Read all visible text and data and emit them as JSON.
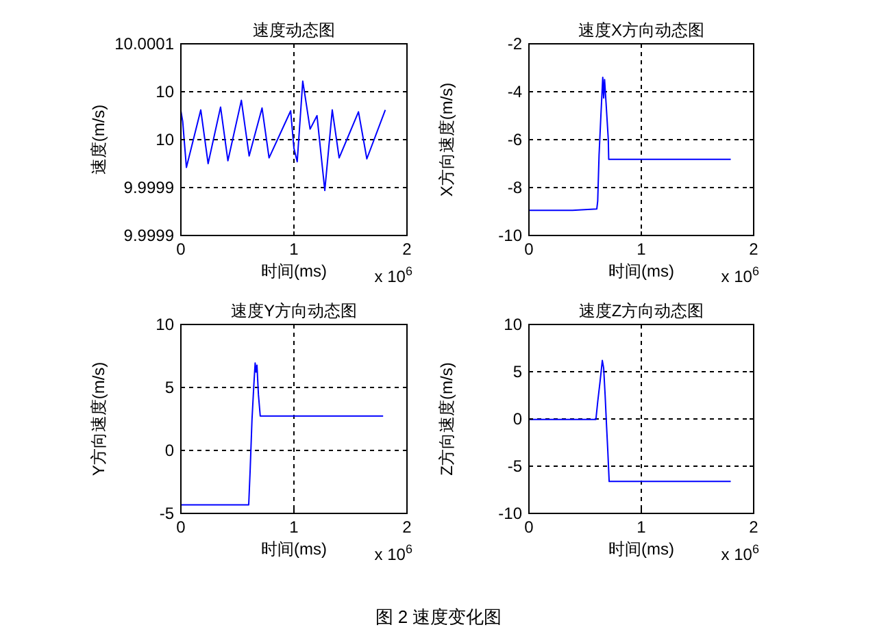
{
  "chart_data": [
    {
      "type": "line",
      "title": "速度动态图",
      "xlabel": "时间(ms)",
      "ylabel": "速度(m/s)",
      "annotations": [
        "x 10$^{6}$"
      ],
      "grid": true,
      "xlim": [
        0,
        2
      ],
      "xticks": [
        0,
        1,
        2
      ],
      "ylim": [
        9.99985,
        10.00005
      ],
      "yticks": [
        {
          "value": 9.99985,
          "label": "9.9999"
        },
        {
          "value": 9.9999,
          "label": "9.9999"
        },
        {
          "value": 9.99995,
          "label": "10"
        },
        {
          "value": 10.0,
          "label": "10"
        },
        {
          "value": 10.00005,
          "label": "10.0001"
        }
      ],
      "series": [
        {
          "color": "#0000ff",
          "x": [
            0,
            0.016,
            0.049,
            0.176,
            0.241,
            0.351,
            0.416,
            0.535,
            0.604,
            0.718,
            0.78,
            0.971,
            1.0,
            1.029,
            1.078,
            1.098,
            1.143,
            1.204,
            1.273,
            1.339,
            1.4,
            1.571,
            1.645,
            1.808
          ],
          "values": [
            9.99998,
            9.999969,
            9.999921,
            9.999981,
            9.999925,
            9.999984,
            9.999928,
            9.999991,
            9.999933,
            9.999983,
            9.999931,
            9.99998,
            9.999941,
            9.999927,
            10.000011,
            9.999996,
            9.999961,
            9.999975,
            9.999897,
            9.999981,
            9.999931,
            9.999979,
            9.99993,
            9.999981
          ]
        }
      ]
    },
    {
      "type": "line",
      "title": "速度X方向动态图",
      "xlabel": "时间(ms)",
      "ylabel": "X方向速度(m/s)",
      "annotations": [
        "x 10$^{6}$"
      ],
      "grid": true,
      "xlim": [
        0,
        2
      ],
      "xticks": [
        0,
        1,
        2
      ],
      "ylim": [
        -10,
        -2
      ],
      "yticks": [
        -10,
        -8,
        -6,
        -4,
        -2
      ],
      "series": [
        {
          "color": "#0000ff",
          "x": [
            0,
            0.388,
            0.604,
            0.612,
            0.624,
            0.641,
            0.657,
            0.665,
            0.673,
            0.686,
            0.706,
            0.71,
            1.796
          ],
          "values": [
            -8.95,
            -8.95,
            -8.89,
            -8.56,
            -6.65,
            -4.93,
            -3.4,
            -4.26,
            -3.49,
            -4.45,
            -5.98,
            -6.82,
            -6.82
          ]
        }
      ]
    },
    {
      "type": "line",
      "title": "速度Y方向动态图",
      "xlabel": "时间(ms)",
      "ylabel": "Y方向速度(m/s)",
      "annotations": [
        "x 10$^{6}$"
      ],
      "grid": true,
      "xlim": [
        0,
        2
      ],
      "xticks": [
        0,
        1,
        2
      ],
      "ylim": [
        -5,
        10
      ],
      "yticks": [
        -5,
        0,
        5,
        10
      ],
      "series": [
        {
          "color": "#0000ff",
          "x": [
            0,
            0.6,
            0.613,
            0.629,
            0.645,
            0.657,
            0.665,
            0.673,
            0.686,
            0.702,
            1.789
          ],
          "values": [
            -4.32,
            -4.32,
            -1.51,
            2.45,
            5.14,
            6.94,
            6.22,
            6.76,
            4.42,
            2.73,
            2.73
          ]
        }
      ]
    },
    {
      "type": "line",
      "title": "速度Z方向动态图",
      "xlabel": "时间(ms)",
      "ylabel": "Z方向速度(m/s)",
      "annotations": [
        "x 10$^{6}$",
        "图 2 速度变化图"
      ],
      "grid": true,
      "xlim": [
        0,
        2
      ],
      "xticks": [
        0,
        1,
        2
      ],
      "ylim": [
        -10,
        10
      ],
      "yticks": [
        -10,
        -5,
        0,
        5,
        10
      ],
      "series": [
        {
          "color": "#0000ff",
          "x": [
            0,
            0.596,
            0.612,
            0.633,
            0.653,
            0.665,
            0.678,
            0.69,
            0.702,
            0.714,
            1.796
          ],
          "values": [
            -0.05,
            -0.05,
            1.81,
            3.95,
            6.19,
            5.38,
            2.52,
            -0.57,
            -3.43,
            -6.62,
            -6.62
          ]
        }
      ]
    }
  ]
}
